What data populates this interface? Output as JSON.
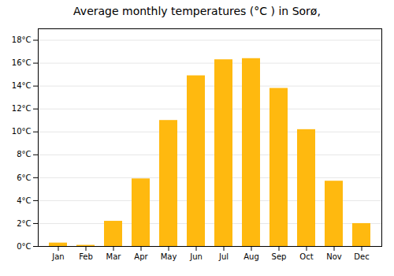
{
  "chart_data": {
    "type": "bar",
    "title": "Average monthly temperatures (°C ) in Sorø,",
    "categories": [
      "Jan",
      "Feb",
      "Mar",
      "Apr",
      "May",
      "Jun",
      "Jul",
      "Aug",
      "Sep",
      "Oct",
      "Nov",
      "Dec"
    ],
    "values": [
      0.3,
      0.1,
      2.2,
      5.9,
      11.0,
      14.9,
      16.3,
      16.4,
      13.8,
      10.2,
      5.7,
      2.0
    ],
    "color": "#FFB90F",
    "ylim": [
      0,
      19
    ],
    "yticks": [
      {
        "value": 0,
        "label": "0°C"
      },
      {
        "value": 2,
        "label": "2°C"
      },
      {
        "value": 4,
        "label": "4°C"
      },
      {
        "value": 6,
        "label": "6°C"
      },
      {
        "value": 8,
        "label": "8°C"
      },
      {
        "value": 10,
        "label": "10°C"
      },
      {
        "value": 12,
        "label": "12°C"
      },
      {
        "value": 14,
        "label": "14°C"
      },
      {
        "value": 16,
        "label": "16°C"
      },
      {
        "value": 18,
        "label": "18°C"
      }
    ],
    "grid": true
  }
}
